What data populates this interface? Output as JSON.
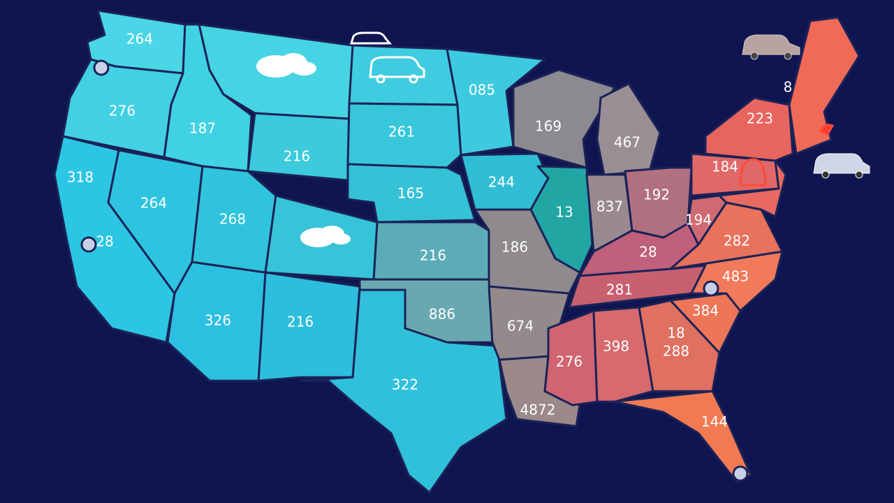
{
  "map": {
    "labels": [
      "264",
      "276",
      "187",
      "085",
      "261",
      "216",
      "165",
      "244",
      "318",
      "28",
      "264",
      "268",
      "216",
      "186",
      "13",
      "837",
      "169",
      "467",
      "192",
      "223",
      "8",
      "184",
      "194",
      "282",
      "28",
      "281",
      "483",
      "384",
      "326",
      "216",
      "886",
      "674",
      "276",
      "398",
      "18",
      "288",
      "322",
      "4872",
      "144"
    ]
  }
}
